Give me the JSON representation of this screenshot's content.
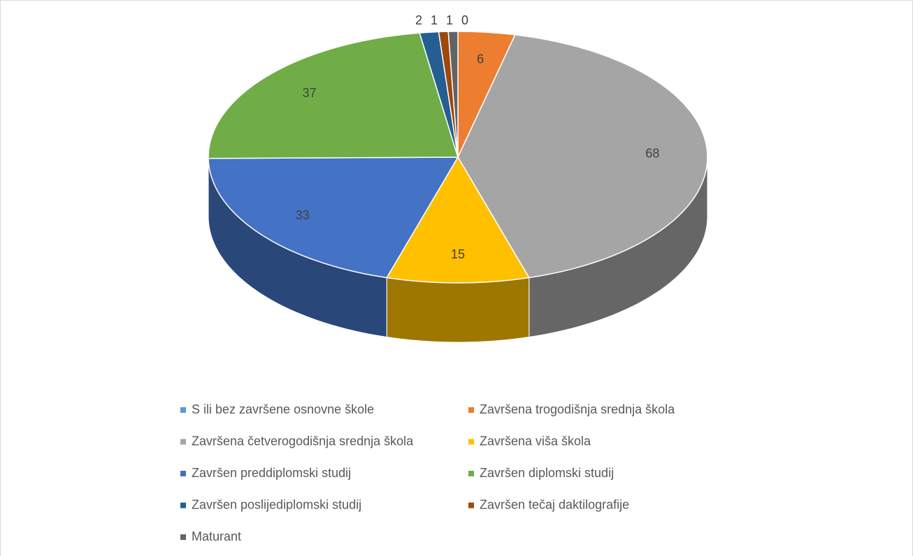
{
  "chart_data": {
    "type": "pie",
    "categories": [
      "S ili bez završene osnovne škole",
      "Završena trogodišnja srednja škola",
      "Završena četverogodišnja srednja škola",
      "Završena viša škola",
      "Završen preddiplomski studij",
      "Završen diplomski studij",
      "Završen poslijediplomski studij",
      "Završen tečaj daktilografije",
      "Maturant"
    ],
    "values": [
      0,
      6,
      68,
      15,
      33,
      37,
      2,
      1,
      1
    ],
    "colors": [
      "#5b9bd5",
      "#ed7d31",
      "#a5a5a5",
      "#ffc000",
      "#4472c4",
      "#70ad47",
      "#255e91",
      "#9e480e",
      "#636363"
    ],
    "legend": "bottom"
  }
}
